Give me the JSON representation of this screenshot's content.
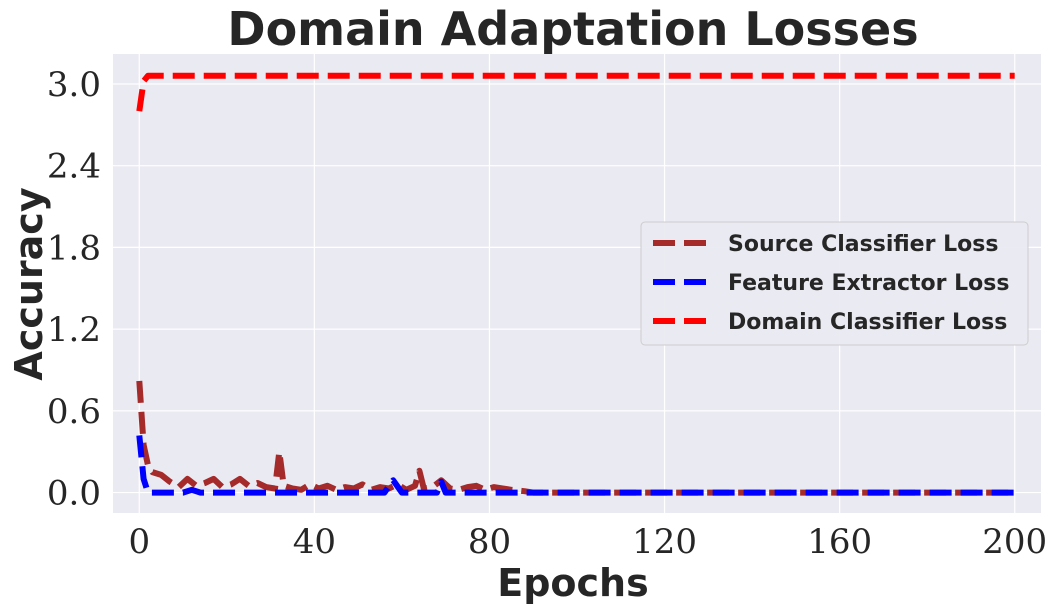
{
  "chart_data": {
    "type": "line",
    "title": "Domain Adaptation Losses",
    "xlabel": "Epochs",
    "ylabel": "Accuracy",
    "xlim": [
      -6,
      206
    ],
    "ylim": [
      -0.15,
      3.22
    ],
    "xticks": [
      0,
      40,
      80,
      120,
      160,
      200
    ],
    "xtick_labels": [
      "0",
      "40",
      "80",
      "120",
      "160",
      "200"
    ],
    "yticks": [
      0.0,
      0.6,
      1.2,
      1.8,
      2.4,
      3.0
    ],
    "ytick_labels": [
      "0.0",
      "0.6",
      "1.2",
      "1.8",
      "2.4",
      "3.0"
    ],
    "grid": true,
    "legend_position": "center-right",
    "background": "#eaeaf2",
    "series": [
      {
        "name": "Source Classifier Loss",
        "color": "#a52a2a",
        "dash": "dashed",
        "x": [
          0,
          1,
          2,
          3,
          5,
          7,
          9,
          11,
          13,
          15,
          17,
          19,
          21,
          23,
          25,
          27,
          29,
          31,
          32,
          33,
          35,
          37,
          39,
          41,
          43,
          45,
          47,
          49,
          51,
          53,
          55,
          57,
          59,
          61,
          63,
          64,
          65,
          67,
          69,
          71,
          73,
          75,
          77,
          79,
          81,
          83,
          85,
          88,
          90,
          100,
          120,
          140,
          160,
          180,
          200
        ],
        "values": [
          0.82,
          0.35,
          0.2,
          0.15,
          0.13,
          0.08,
          0.04,
          0.1,
          0.05,
          0.07,
          0.1,
          0.04,
          0.06,
          0.1,
          0.05,
          0.07,
          0.04,
          0.03,
          0.3,
          0.05,
          0.03,
          0.02,
          0.06,
          0.03,
          0.05,
          0.02,
          0.04,
          0.03,
          0.06,
          0.02,
          0.04,
          0.03,
          0.06,
          0.02,
          0.05,
          0.16,
          0.03,
          0.04,
          0.09,
          0.03,
          0.02,
          0.04,
          0.05,
          0.02,
          0.04,
          0.03,
          0.02,
          0.01,
          0.0,
          0.0,
          0.0,
          0.0,
          0.0,
          0.0,
          0.0
        ]
      },
      {
        "name": "Feature Extractor Loss",
        "color": "#0000ff",
        "dash": "dashed",
        "x": [
          0,
          1,
          2,
          3,
          5,
          10,
          12,
          14,
          20,
          30,
          40,
          50,
          56,
          58,
          60,
          68,
          69,
          70,
          72,
          80,
          100,
          120,
          140,
          160,
          180,
          200
        ],
        "values": [
          0.42,
          0.1,
          0.0,
          0.0,
          0.0,
          0.0,
          0.02,
          0.0,
          0.0,
          0.0,
          0.0,
          0.0,
          0.0,
          0.09,
          0.0,
          0.0,
          0.08,
          0.0,
          0.0,
          0.0,
          0.0,
          0.0,
          0.0,
          0.0,
          0.0,
          0.0
        ]
      },
      {
        "name": "Domain Classifier Loss",
        "color": "#ff0000",
        "dash": "dashed",
        "x": [
          0,
          1,
          2,
          5,
          20,
          50,
          100,
          150,
          200
        ],
        "values": [
          2.8,
          3.02,
          3.06,
          3.06,
          3.06,
          3.06,
          3.06,
          3.06,
          3.06
        ]
      }
    ]
  }
}
